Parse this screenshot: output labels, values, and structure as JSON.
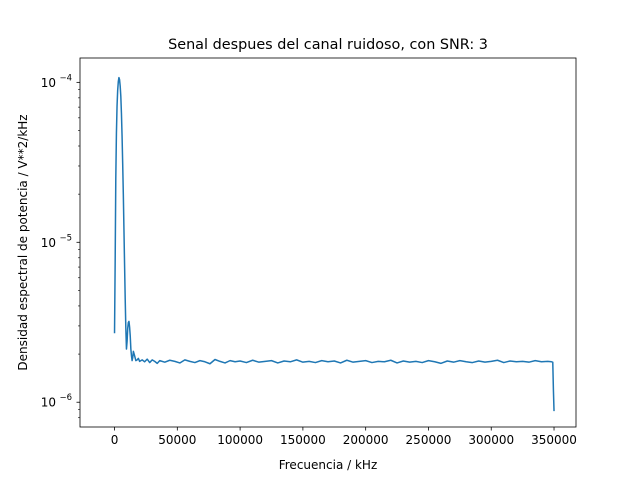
{
  "chart_data": {
    "type": "line",
    "title": "Senal despues del canal ruidoso, con SNR: 3",
    "xlabel": "Frecuencia / kHz",
    "ylabel": "Densidad espectral de potencia / V**2/kHz",
    "xlim": [
      -27500,
      367500
    ],
    "ylim": [
      7e-07,
      0.000142
    ],
    "yscale": "log",
    "grid": false,
    "legend": "none",
    "line_color": "#1f77b4",
    "x_ticks": [
      {
        "value": 0,
        "label": "0"
      },
      {
        "value": 50000,
        "label": "50000"
      },
      {
        "value": 100000,
        "label": "100000"
      },
      {
        "value": 150000,
        "label": "150000"
      },
      {
        "value": 200000,
        "label": "200000"
      },
      {
        "value": 250000,
        "label": "250000"
      },
      {
        "value": 300000,
        "label": "300000"
      },
      {
        "value": 350000,
        "label": "350000"
      }
    ],
    "y_ticks": [
      {
        "value": 1e-06,
        "base": "10",
        "exp": "−6"
      },
      {
        "value": 1e-05,
        "base": "10",
        "exp": "−5"
      },
      {
        "value": 0.0001,
        "base": "10",
        "exp": "−4"
      }
    ],
    "series": [
      {
        "x": [
          0,
          500,
          1000,
          1500,
          2000,
          2500,
          3000,
          3500,
          4000,
          4500,
          5000,
          5500,
          6000,
          6500,
          7000,
          7500,
          8000,
          8500,
          9000,
          9500,
          10000,
          10500,
          11000,
          11500,
          12000,
          12500,
          13000,
          13500,
          14000,
          14500,
          15000,
          16000,
          17000,
          18000,
          19000,
          20000,
          22000,
          24000,
          26000,
          28000,
          30000,
          32000,
          34000,
          36000,
          40000,
          44000,
          48000,
          52000,
          56000,
          60000,
          64000,
          68000,
          72000,
          76000,
          80000,
          84000,
          88000,
          92000,
          96000,
          100000,
          105000,
          110000,
          115000,
          120000,
          125000,
          130000,
          135000,
          140000,
          145000,
          150000,
          155000,
          160000,
          165000,
          170000,
          175000,
          180000,
          185000,
          190000,
          195000,
          200000,
          205000,
          210000,
          215000,
          220000,
          225000,
          230000,
          235000,
          240000,
          245000,
          250000,
          255000,
          260000,
          265000,
          270000,
          275000,
          280000,
          285000,
          290000,
          295000,
          300000,
          305000,
          310000,
          315000,
          320000,
          325000,
          330000,
          335000,
          340000,
          345000,
          348000,
          349000,
          349500,
          350000
        ],
        "y": [
          2.7e-06,
          7.5e-06,
          2.5e-05,
          4.8e-05,
          7.1e-05,
          8.9e-05,
          0.000101,
          0.000107,
          0.000104,
          9.5e-05,
          8.2e-05,
          6.4e-05,
          4.6e-05,
          3.1e-05,
          2e-05,
          1.2e-05,
          7.2e-06,
          4.4e-06,
          2.9e-06,
          2.15e-06,
          2.4e-06,
          2.9e-06,
          3.15e-06,
          3.2e-06,
          2.95e-06,
          2.6e-06,
          2.15e-06,
          1.95e-06,
          1.82e-06,
          1.9e-06,
          2.08e-06,
          1.95e-06,
          1.82e-06,
          1.84e-06,
          1.88e-06,
          1.8e-06,
          1.84e-06,
          1.79e-06,
          1.86e-06,
          1.77e-06,
          1.84e-06,
          1.8e-06,
          1.75e-06,
          1.82e-06,
          1.78e-06,
          1.83e-06,
          1.8e-06,
          1.76e-06,
          1.84e-06,
          1.8e-06,
          1.77e-06,
          1.82e-06,
          1.79e-06,
          1.74e-06,
          1.85e-06,
          1.8e-06,
          1.76e-06,
          1.82e-06,
          1.79e-06,
          1.81e-06,
          1.77e-06,
          1.83e-06,
          1.78e-06,
          1.8e-06,
          1.82e-06,
          1.76e-06,
          1.81e-06,
          1.79e-06,
          1.84e-06,
          1.78e-06,
          1.8e-06,
          1.77e-06,
          1.82e-06,
          1.79e-06,
          1.81e-06,
          1.76e-06,
          1.83e-06,
          1.78e-06,
          1.8e-06,
          1.82e-06,
          1.77e-06,
          1.8e-06,
          1.79e-06,
          1.83e-06,
          1.76e-06,
          1.81e-06,
          1.78e-06,
          1.8e-06,
          1.77e-06,
          1.82e-06,
          1.79e-06,
          1.75e-06,
          1.81e-06,
          1.78e-06,
          1.82e-06,
          1.79e-06,
          1.77e-06,
          1.81e-06,
          1.78e-06,
          1.8e-06,
          1.83e-06,
          1.77e-06,
          1.81e-06,
          1.79e-06,
          1.8e-06,
          1.78e-06,
          1.82e-06,
          1.79e-06,
          1.8e-06,
          1.79e-06,
          1.78e-06,
          1.2e-06,
          8.8e-07
        ]
      }
    ]
  }
}
